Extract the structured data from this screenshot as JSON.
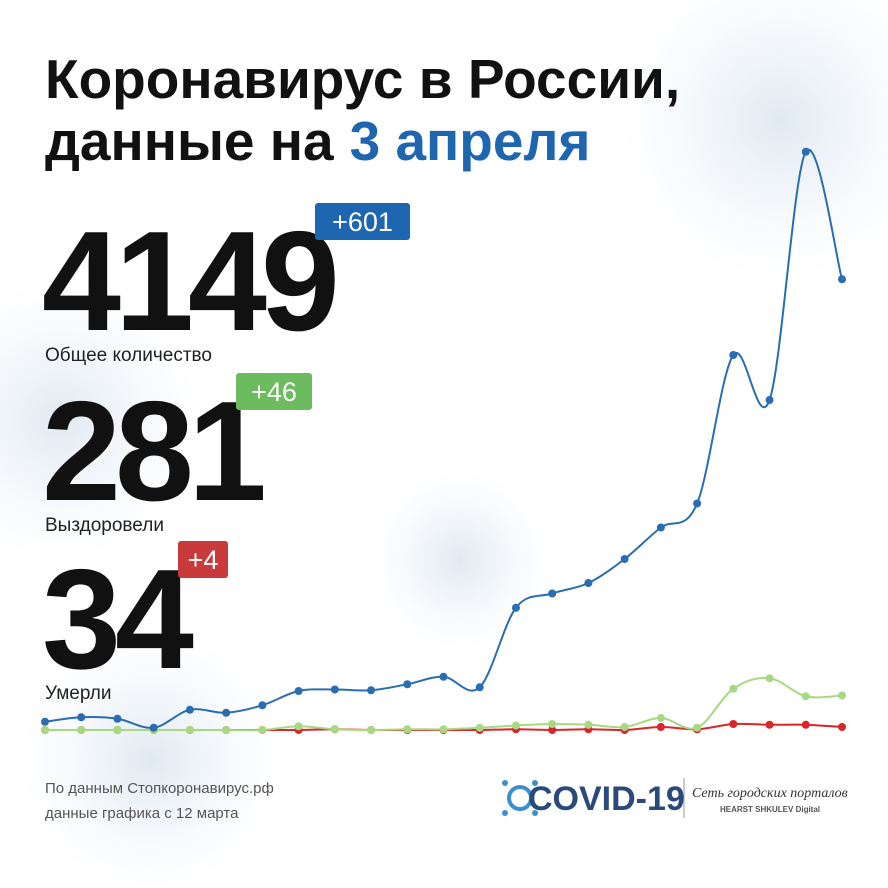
{
  "header": {
    "title_line1": "Коронавирус в России,",
    "title_line2": "данные на",
    "title_highlight": "3 апреля"
  },
  "stats": [
    {
      "value": "4149",
      "change": "+601",
      "label": "Общее количество",
      "color": "#1f66b0"
    },
    {
      "value": "281",
      "change": "+46",
      "label": "Выздоровели",
      "color": "#6dbb5f"
    },
    {
      "value": "34",
      "change": "+4",
      "label": "Умерли",
      "color": "#c93b3b"
    }
  ],
  "footer": {
    "source": "По данным Стопкоронавирус.рф",
    "source_note": "данные графика с 12 марта",
    "logo": "COVID-19",
    "network": "Сеть городских порталов",
    "brand": "HEARST SHKULEV Digital"
  },
  "chart_data": {
    "type": "line",
    "categories": [
      null,
      null,
      null,
      null,
      null,
      null,
      null,
      null,
      null,
      null,
      null,
      null,
      null,
      null,
      null,
      null,
      null,
      null,
      null,
      null,
      null,
      null,
      null
    ],
    "ylim": [
      0,
      800
    ],
    "series": [
      {
        "color": "#2a6db0",
        "values": [
          11,
          17,
          15,
          3,
          27,
          23,
          33,
          52,
          54,
          53,
          61,
          71,
          57,
          163,
          182,
          196,
          228,
          270,
          302,
          500,
          440,
          771,
          601
        ]
      },
      {
        "color": "#a8d982",
        "values": [
          0,
          0,
          0,
          0,
          0,
          0,
          0,
          5,
          1,
          0,
          1,
          1,
          3,
          6,
          8,
          7,
          4,
          16,
          3,
          55,
          69,
          45,
          46
        ]
      },
      {
        "color": "#d8262b",
        "values": [
          0,
          0,
          0,
          0,
          0,
          0,
          0,
          0,
          1,
          0,
          0,
          0,
          0,
          1,
          0,
          1,
          0,
          4,
          1,
          8,
          7,
          7,
          4
        ]
      }
    ]
  }
}
